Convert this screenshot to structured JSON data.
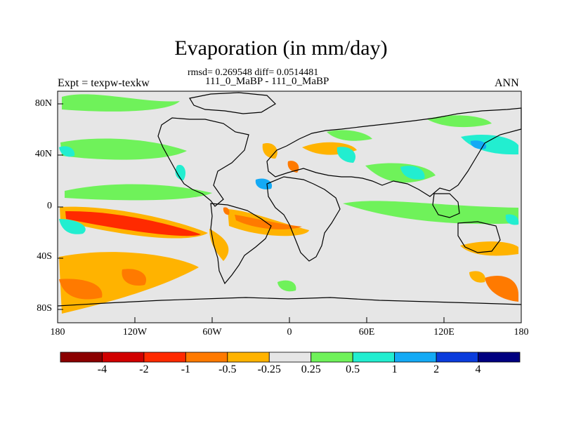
{
  "title": "Evaporation (in mm/day)",
  "subtitle_stats": "rmsd= 0.269548 diff= 0.0514481",
  "subtitle_case": "111_0_MaBP - 111_0_MaBP",
  "left_label": "Expt = texpw-texkw",
  "right_label": "ANN",
  "chart_data": {
    "type": "heatmap",
    "title": "Evaporation (in mm/day)",
    "projection": "cylindrical equidistant",
    "xlim": [
      -180,
      180
    ],
    "ylim": [
      -90,
      90
    ],
    "x_ticks": [
      "180",
      "120W",
      "60W",
      "0",
      "60E",
      "120E",
      "180"
    ],
    "y_ticks": [
      "80N",
      "40N",
      "0",
      "40S",
      "80S"
    ],
    "colorbar": {
      "labels": [
        "-4",
        "-2",
        "-1",
        "-0.5",
        "-0.25",
        "0.25",
        "0.5",
        "1",
        "2",
        "4"
      ],
      "bins": [
        {
          "range": "< -4",
          "color": "#8b0000"
        },
        {
          "range": "-4 to -2",
          "color": "#d10000"
        },
        {
          "range": "-2 to -1",
          "color": "#ff2a00"
        },
        {
          "range": "-1 to -0.5",
          "color": "#ff7a00"
        },
        {
          "range": "-0.5 to -0.25",
          "color": "#ffb300"
        },
        {
          "range": "-0.25 to 0.25",
          "color": "#e6e6e6"
        },
        {
          "range": "0.25 to 0.5",
          "color": "#6ff25a"
        },
        {
          "range": "0.5 to 1",
          "color": "#22eed0"
        },
        {
          "range": "1 to 2",
          "color": "#14aaf5"
        },
        {
          "range": "2 to 4",
          "color": "#0a3cdc"
        },
        {
          "range": "> 4",
          "color": "#000080"
        }
      ]
    },
    "regions": [
      {
        "name": "arctic-positive",
        "lon": [
          -150,
          -120
        ],
        "lat": [
          80,
          90
        ],
        "value": 0.3
      },
      {
        "name": "north-pacific-positive",
        "lon": [
          -180,
          -95
        ],
        "lat": [
          30,
          50
        ],
        "value": 0.4
      },
      {
        "name": "north-pacific-blue-patch",
        "lon": [
          -180,
          -165
        ],
        "lat": [
          35,
          45
        ],
        "value": 0.7
      },
      {
        "name": "tropical-pacific-negative",
        "lon": [
          -180,
          -75
        ],
        "lat": [
          -25,
          -5
        ],
        "value": -0.6
      },
      {
        "name": "equatorial-pacific-blue",
        "lon": [
          -180,
          -165
        ],
        "lat": [
          -20,
          -10
        ],
        "value": 0.7
      },
      {
        "name": "south-pacific-negative",
        "lon": [
          -180,
          -80
        ],
        "lat": [
          -80,
          -45
        ],
        "value": -0.5
      },
      {
        "name": "south-pacific-strong-negative",
        "lon": [
          -180,
          -160
        ],
        "lat": [
          -75,
          -60
        ],
        "value": -1.2
      },
      {
        "name": "south-atlantic-negative-band",
        "lon": [
          -50,
          10
        ],
        "lat": [
          -25,
          -5
        ],
        "value": -0.8
      },
      {
        "name": "indian-ocean-positive",
        "lon": [
          60,
          150
        ],
        "lat": [
          -25,
          0
        ],
        "value": 0.35
      },
      {
        "name": "asia-blue",
        "lon": [
          80,
          100
        ],
        "lat": [
          25,
          40
        ],
        "value": 0.7
      },
      {
        "name": "north-pacific-west-blue",
        "lon": [
          140,
          160
        ],
        "lat": [
          35,
          45
        ],
        "value": 1.2
      },
      {
        "name": "southern-ocean-east-negative",
        "lon": [
          160,
          180
        ],
        "lat": [
          -70,
          -55
        ],
        "value": -1.0
      }
    ]
  }
}
